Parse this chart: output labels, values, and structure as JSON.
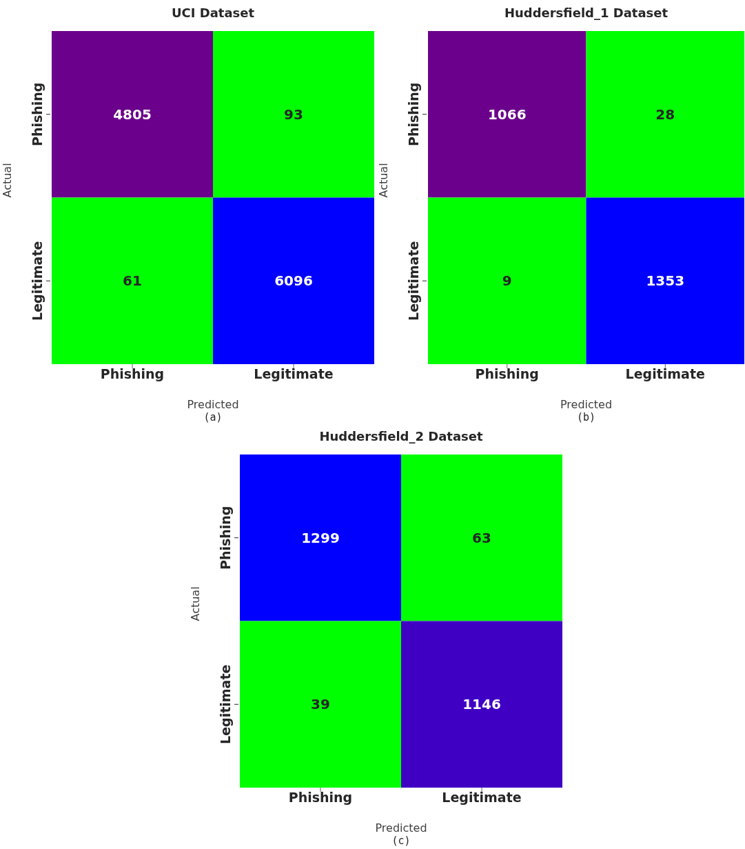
{
  "chart_data": [
    {
      "type": "heatmap",
      "title": "UCI Dataset",
      "xlabel": "Predicted",
      "ylabel": "Actual",
      "categories": [
        "Phishing",
        "Legitimate"
      ],
      "y_categories": [
        "Phishing",
        "Legitimate"
      ],
      "cells": [
        [
          4805,
          93
        ],
        [
          61,
          6096
        ]
      ],
      "colors": [
        [
          "#6a008b",
          "#00ff00"
        ],
        [
          "#00ff00",
          "#0000ff"
        ]
      ],
      "data_labels": true,
      "annotations": [
        "(a)"
      ]
    },
    {
      "type": "heatmap",
      "title": "Huddersfield_1 Dataset",
      "xlabel": "Predicted",
      "ylabel": "Actual",
      "categories": [
        "Phishing",
        "Legitimate"
      ],
      "y_categories": [
        "Phishing",
        "Legitimate"
      ],
      "cells": [
        [
          1066,
          28
        ],
        [
          9,
          1353
        ]
      ],
      "colors": [
        [
          "#6a008b",
          "#00ff00"
        ],
        [
          "#00ff00",
          "#0000ff"
        ]
      ],
      "data_labels": true,
      "annotations": [
        "(b)"
      ]
    },
    {
      "type": "heatmap",
      "title": "Huddersfield_2 Dataset",
      "xlabel": "Predicted",
      "ylabel": "Actual",
      "categories": [
        "Phishing",
        "Legitimate"
      ],
      "y_categories": [
        "Phishing",
        "Legitimate"
      ],
      "cells": [
        [
          1299,
          63
        ],
        [
          39,
          1146
        ]
      ],
      "colors": [
        [
          "#0000ff",
          "#00ff00"
        ],
        [
          "#00ff00",
          "#3f00c4"
        ]
      ],
      "data_labels": true,
      "annotations": [
        "(c)"
      ]
    }
  ]
}
